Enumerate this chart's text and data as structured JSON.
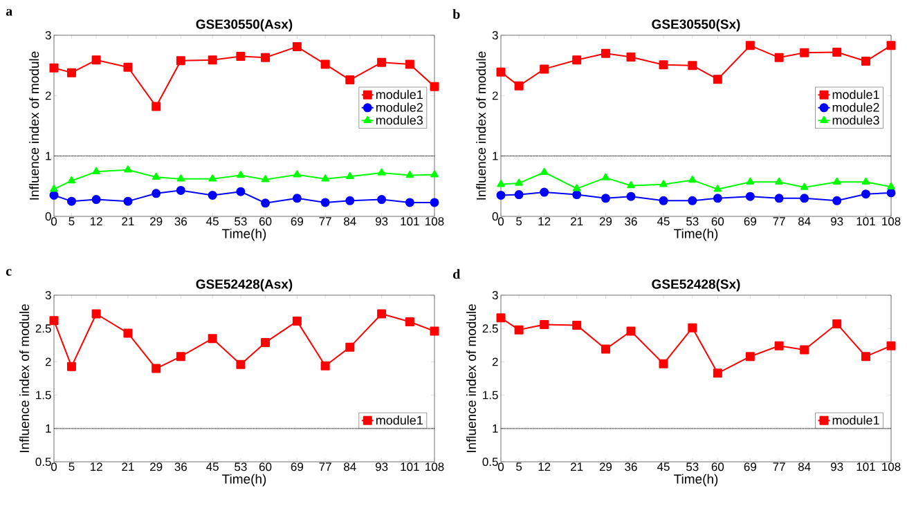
{
  "chart_data": [
    {
      "type": "line",
      "title": "GSE30550(Asx)",
      "xlabel": "Time(h)",
      "ylabel": "Influence index of module",
      "annotations": [
        "a"
      ],
      "x": [
        0,
        5,
        12,
        21,
        29,
        36,
        45,
        53,
        60,
        69,
        77,
        84,
        93,
        101,
        108
      ],
      "xlim": [
        0,
        108
      ],
      "xticks": [
        0,
        5,
        12,
        21,
        29,
        36,
        45,
        53,
        60,
        69,
        77,
        84,
        93,
        101,
        108
      ],
      "ylim": [
        0,
        3
      ],
      "yticks": [
        0,
        1,
        2,
        3
      ],
      "legend": "right",
      "ref_lines": [
        {
          "axis": "y",
          "value": 1,
          "color": "#000000",
          "line_style": "dotted"
        }
      ],
      "series": [
        {
          "name": "module1",
          "color": "#ff0000",
          "marker": "square",
          "values": [
            2.46,
            2.38,
            2.59,
            2.47,
            1.82,
            2.58,
            2.59,
            2.65,
            2.63,
            2.81,
            2.52,
            2.26,
            2.55,
            2.52,
            2.15
          ]
        },
        {
          "name": "module2",
          "color": "#0000ff",
          "marker": "circle",
          "values": [
            0.35,
            0.25,
            0.28,
            0.25,
            0.38,
            0.43,
            0.35,
            0.41,
            0.22,
            0.3,
            0.23,
            0.26,
            0.28,
            0.23,
            0.23
          ]
        },
        {
          "name": "module3",
          "color": "#00ff00",
          "marker": "triangle",
          "values": [
            0.45,
            0.59,
            0.74,
            0.77,
            0.65,
            0.62,
            0.62,
            0.68,
            0.61,
            0.69,
            0.62,
            0.66,
            0.72,
            0.68,
            0.69
          ]
        }
      ]
    },
    {
      "type": "line",
      "title": "GSE30550(Sx)",
      "xlabel": "Time(h)",
      "ylabel": "Influence index of module",
      "annotations": [
        "b"
      ],
      "x": [
        0,
        5,
        12,
        21,
        29,
        36,
        45,
        53,
        60,
        69,
        77,
        84,
        93,
        101,
        108
      ],
      "xlim": [
        0,
        108
      ],
      "xticks": [
        0,
        5,
        12,
        21,
        29,
        36,
        45,
        53,
        60,
        69,
        77,
        84,
        93,
        101,
        108
      ],
      "ylim": [
        0,
        3
      ],
      "yticks": [
        0,
        1,
        2,
        3
      ],
      "legend": "right",
      "ref_lines": [
        {
          "axis": "y",
          "value": 1,
          "color": "#000000",
          "line_style": "dotted"
        }
      ],
      "series": [
        {
          "name": "module1",
          "color": "#ff0000",
          "marker": "square",
          "values": [
            2.39,
            2.16,
            2.44,
            2.59,
            2.7,
            2.64,
            2.51,
            2.5,
            2.27,
            2.83,
            2.63,
            2.71,
            2.72,
            2.57,
            2.83
          ]
        },
        {
          "name": "module2",
          "color": "#0000ff",
          "marker": "circle",
          "values": [
            0.35,
            0.36,
            0.4,
            0.36,
            0.3,
            0.33,
            0.26,
            0.26,
            0.3,
            0.33,
            0.3,
            0.3,
            0.26,
            0.37,
            0.39
          ]
        },
        {
          "name": "module3",
          "color": "#00ff00",
          "marker": "triangle",
          "values": [
            0.53,
            0.55,
            0.73,
            0.46,
            0.64,
            0.51,
            0.53,
            0.6,
            0.45,
            0.57,
            0.57,
            0.48,
            0.57,
            0.57,
            0.49
          ]
        }
      ]
    },
    {
      "type": "line",
      "title": "GSE52428(Asx)",
      "xlabel": "Time(h)",
      "ylabel": "Influence index of module",
      "annotations": [
        "c"
      ],
      "x": [
        0,
        5,
        12,
        21,
        29,
        36,
        45,
        53,
        60,
        69,
        77,
        84,
        93,
        101,
        108
      ],
      "xlim": [
        0,
        108
      ],
      "xticks": [
        0,
        5,
        12,
        21,
        29,
        36,
        45,
        53,
        60,
        69,
        77,
        84,
        93,
        101,
        108
      ],
      "ylim": [
        0.5,
        3
      ],
      "yticks": [
        0.5,
        1,
        1.5,
        2,
        2.5,
        3
      ],
      "legend": "bottom right",
      "ref_lines": [
        {
          "axis": "y",
          "value": 1,
          "color": "#000000",
          "line_style": "dotted"
        }
      ],
      "series": [
        {
          "name": "module1",
          "color": "#ff0000",
          "marker": "square",
          "values": [
            2.62,
            1.93,
            2.72,
            2.43,
            1.9,
            2.08,
            2.35,
            1.96,
            2.29,
            2.61,
            1.94,
            2.22,
            2.72,
            2.6,
            2.46
          ]
        }
      ]
    },
    {
      "type": "line",
      "title": "GSE52428(Sx)",
      "xlabel": "Time(h)",
      "ylabel": "Influence index of module",
      "annotations": [
        "d"
      ],
      "x": [
        0,
        5,
        12,
        21,
        29,
        36,
        45,
        53,
        60,
        69,
        77,
        84,
        93,
        101,
        108
      ],
      "xlim": [
        0,
        108
      ],
      "xticks": [
        0,
        5,
        12,
        21,
        29,
        36,
        45,
        53,
        60,
        69,
        77,
        84,
        93,
        101,
        108
      ],
      "ylim": [
        0.5,
        3
      ],
      "yticks": [
        0.5,
        1,
        1.5,
        2,
        2.5,
        3
      ],
      "legend": "bottom right",
      "ref_lines": [
        {
          "axis": "y",
          "value": 1,
          "color": "#000000",
          "line_style": "dotted"
        }
      ],
      "series": [
        {
          "name": "module1",
          "color": "#ff0000",
          "marker": "square",
          "values": [
            2.66,
            2.48,
            2.56,
            2.55,
            2.19,
            2.46,
            1.97,
            2.51,
            1.83,
            2.08,
            2.24,
            2.18,
            2.57,
            2.08,
            2.24
          ]
        }
      ]
    }
  ]
}
